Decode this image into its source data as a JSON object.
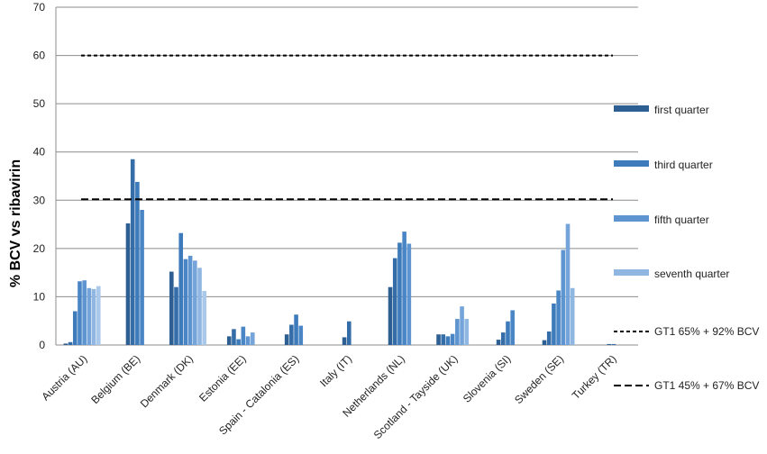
{
  "chart_data": {
    "type": "bar",
    "title": "",
    "xlabel": "",
    "ylabel": "% BCV vs ribavirin",
    "ylim": [
      0,
      70
    ],
    "yticks": [
      "0",
      "10",
      "20",
      "30",
      "40",
      "50",
      "60",
      "70"
    ],
    "grid": "horizontal",
    "legend_position": "right",
    "categories": [
      "Austria (AU)",
      "Belgium (BE)",
      "Denmark (DK)",
      "Estonia (EE)",
      "Spain - Catalonia (ES)",
      "Italy (IT)",
      "Netherlands (NL)",
      "Scotland - Tayside (UK)",
      "Slovenia (SI)",
      "Sweden (SE)",
      "Turkey (TR)"
    ],
    "bar_colors": [
      "#2e5f93",
      "#356da8",
      "#3d7bbb",
      "#4a86c6",
      "#5e95d1",
      "#74a4d9",
      "#8fb7e2",
      "#a9c8ea"
    ],
    "bar_values": [
      [
        0.3,
        0.6,
        7.0,
        13.2,
        13.4,
        11.8,
        11.6,
        12.2
      ],
      [
        25.2,
        38.5,
        33.8,
        28.0
      ],
      [
        15.2,
        12.0,
        23.2,
        17.8,
        18.5,
        17.5,
        16.0,
        11.2
      ],
      [
        1.8,
        3.3,
        1.2,
        3.8,
        1.8,
        2.6
      ],
      [
        2.2,
        4.2,
        6.3,
        4.0
      ],
      [
        1.6,
        4.9
      ],
      [
        12.0,
        18.0,
        21.2,
        23.5,
        21.0
      ],
      [
        2.2,
        2.2,
        1.8,
        2.3,
        5.4,
        8.0,
        5.4
      ],
      [
        1.1,
        2.6,
        4.9,
        7.2
      ],
      [
        1.0,
        2.8,
        8.6,
        11.3,
        19.7,
        25.1,
        11.8
      ],
      [
        0.2,
        0.2
      ]
    ],
    "reference_lines": [
      {
        "name": "GT1 65% + 92% BCV",
        "value": 60,
        "style": "short-dash"
      },
      {
        "name": "GT1 45% + 67% BCV",
        "value": 30.2,
        "style": "long-dash"
      }
    ],
    "legend": [
      {
        "name": "first quarter",
        "color": "#2e5f93",
        "kind": "bar"
      },
      {
        "name": "third quarter",
        "color": "#3d7bbb",
        "kind": "bar"
      },
      {
        "name": "fifth quarter",
        "color": "#5e95d1",
        "kind": "bar"
      },
      {
        "name": "seventh quarter",
        "color": "#8fb7e2",
        "kind": "bar"
      },
      {
        "name": "GT1 65% + 92% BCV",
        "kind": "short-dash"
      },
      {
        "name": "GT1 45% + 67% BCV",
        "kind": "long-dash"
      }
    ]
  }
}
